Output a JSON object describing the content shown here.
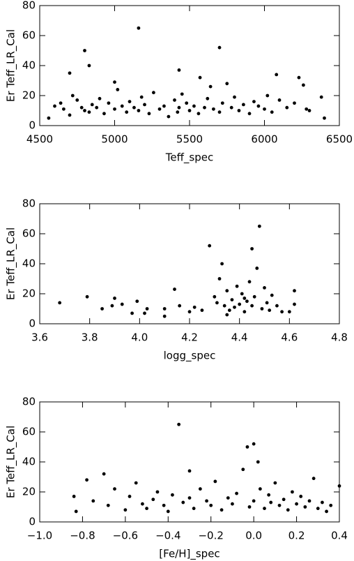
{
  "chart_data": [
    {
      "type": "scatter",
      "xlabel": "Teff_spec",
      "ylabel": "Er Teff_LR_Cal",
      "color": "#000000",
      "xlim": [
        4500,
        6500
      ],
      "ylim": [
        0,
        80
      ],
      "xticks": [
        4500,
        5000,
        5500,
        6000,
        6500
      ],
      "yticks": [
        0,
        20,
        40,
        60,
        80
      ],
      "x": [
        4560,
        4600,
        4640,
        4660,
        4700,
        4720,
        4750,
        4780,
        4800,
        4830,
        4850,
        4880,
        4900,
        4930,
        4960,
        5000,
        5020,
        5050,
        5080,
        5100,
        5130,
        5160,
        5180,
        5200,
        5230,
        5260,
        5300,
        5330,
        5360,
        5400,
        5420,
        5430,
        5450,
        5480,
        5500,
        5530,
        5560,
        5570,
        5600,
        5620,
        5640,
        5660,
        5700,
        5720,
        5750,
        5780,
        5800,
        5830,
        5860,
        5900,
        5930,
        5960,
        6000,
        6020,
        6050,
        6080,
        6100,
        6150,
        6200,
        6230,
        6260,
        6280,
        6300,
        6380,
        6400,
        4700,
        4800,
        4830,
        5000,
        5160,
        5700,
        5430
      ],
      "values": [
        5,
        13,
        15,
        11,
        7,
        20,
        17,
        12,
        10,
        9,
        14,
        12,
        18,
        8,
        15,
        11,
        24,
        13,
        9,
        16,
        12,
        10,
        19,
        14,
        8,
        22,
        11,
        13,
        6,
        17,
        9,
        12,
        21,
        15,
        10,
        13,
        8,
        32,
        12,
        18,
        26,
        11,
        9,
        15,
        28,
        12,
        19,
        10,
        14,
        8,
        16,
        13,
        11,
        20,
        9,
        34,
        17,
        12,
        15,
        32,
        27,
        11,
        10,
        19,
        5,
        35,
        50,
        40,
        29,
        65,
        52,
        37
      ]
    },
    {
      "type": "scatter",
      "xlabel": "logg_spec",
      "ylabel": "Er Teff_LR_Cal",
      "color": "#000000",
      "xlim": [
        3.6,
        4.8
      ],
      "ylim": [
        0,
        80
      ],
      "xticks": [
        3.6,
        3.8,
        {
          "value": 4,
          "label": "4.0"
        },
        4.2,
        4.4,
        4.6,
        4.8
      ],
      "yticks": [
        0,
        20,
        40,
        60,
        80
      ],
      "x": [
        3.68,
        3.79,
        3.85,
        3.89,
        3.9,
        3.93,
        3.97,
        3.99,
        4.02,
        4.03,
        4.1,
        4.1,
        4.14,
        4.16,
        4.2,
        4.22,
        4.25,
        4.28,
        4.3,
        4.31,
        4.32,
        4.33,
        4.34,
        4.35,
        4.36,
        4.37,
        4.38,
        4.39,
        4.4,
        4.41,
        4.42,
        4.43,
        4.44,
        4.45,
        4.45,
        4.46,
        4.47,
        4.48,
        4.49,
        4.5,
        4.51,
        4.52,
        4.53,
        4.55,
        4.57,
        4.6,
        4.62,
        4.62,
        4.35,
        4.42
      ],
      "values": [
        14,
        18,
        10,
        12,
        17,
        13,
        7,
        15,
        7,
        10,
        5,
        10,
        23,
        12,
        8,
        11,
        9,
        52,
        18,
        14,
        30,
        40,
        12,
        22,
        9,
        16,
        11,
        25,
        13,
        20,
        8,
        15,
        28,
        50,
        12,
        18,
        37,
        65,
        10,
        24,
        14,
        9,
        19,
        12,
        8,
        8,
        22,
        13,
        6,
        17
      ]
    },
    {
      "type": "scatter",
      "xlabel": "[Fe/H]_spec",
      "ylabel": "Er Teff_LR_Cal",
      "color": "#000000",
      "xlim": [
        -1.0,
        0.4
      ],
      "ylim": [
        0,
        80
      ],
      "xticks": [
        {
          "value": -1.0,
          "label": "−1.0"
        },
        {
          "value": -0.8,
          "label": "−0.8"
        },
        {
          "value": -0.6,
          "label": "−0.6"
        },
        {
          "value": -0.4,
          "label": "−0.4"
        },
        {
          "value": -0.2,
          "label": "−0.2"
        },
        {
          "value": 0,
          "label": "0.0"
        },
        0.2,
        0.4
      ],
      "yticks": [
        0,
        20,
        40,
        60,
        80
      ],
      "x": [
        -0.84,
        -0.83,
        -0.78,
        -0.75,
        -0.7,
        -0.68,
        -0.65,
        -0.6,
        -0.58,
        -0.55,
        -0.52,
        -0.5,
        -0.47,
        -0.45,
        -0.42,
        -0.4,
        -0.38,
        -0.35,
        -0.33,
        -0.3,
        -0.28,
        -0.25,
        -0.22,
        -0.2,
        -0.18,
        -0.15,
        -0.12,
        -0.1,
        -0.08,
        -0.05,
        -0.03,
        -0.02,
        0.0,
        0.0,
        0.02,
        0.03,
        0.05,
        0.07,
        0.08,
        0.1,
        0.12,
        0.14,
        0.16,
        0.18,
        0.2,
        0.22,
        0.24,
        0.26,
        0.28,
        0.3,
        0.32,
        0.34,
        0.36,
        0.4,
        -0.3
      ],
      "values": [
        17,
        7,
        28,
        14,
        32,
        11,
        22,
        8,
        17,
        26,
        12,
        9,
        15,
        20,
        11,
        7,
        18,
        65,
        13,
        34,
        9,
        22,
        14,
        11,
        27,
        8,
        16,
        12,
        19,
        35,
        50,
        10,
        52,
        14,
        40,
        22,
        9,
        18,
        13,
        26,
        11,
        15,
        8,
        20,
        12,
        17,
        10,
        14,
        29,
        9,
        13,
        7,
        11,
        24,
        16
      ]
    }
  ]
}
